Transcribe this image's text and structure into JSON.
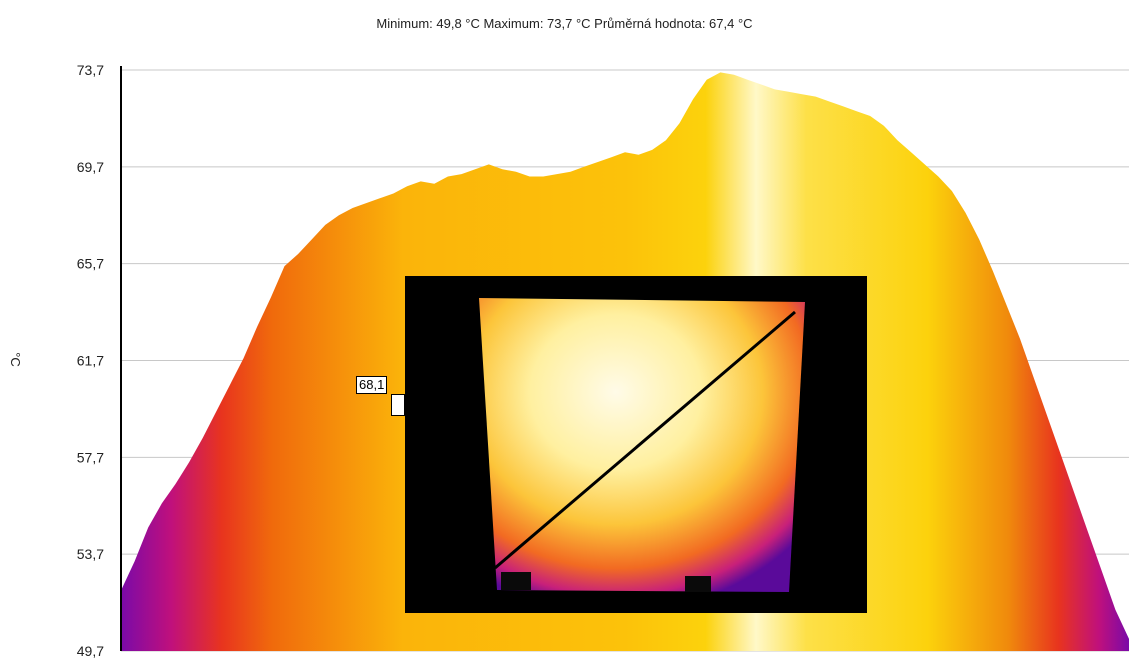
{
  "stats": {
    "text": "Minimum:  49,8  °C Maximum:  73,7  °C Průměrná hodnota: 67,4  °C"
  },
  "marker": {
    "label": "68,1"
  },
  "colors": {
    "line": "#000000",
    "gridline": "#c8c8c8",
    "palette": [
      "#7a0aa8",
      "#c0107c",
      "#e8341e",
      "#f06a0c",
      "#fbb40a",
      "#fcd20c",
      "#fff8c8"
    ]
  },
  "chart_data": {
    "type": "area",
    "ylabel": "°C",
    "ylim": [
      49.7,
      73.7
    ],
    "yticks": [
      "49,7",
      "53,7",
      "57,7",
      "61,7",
      "65,7",
      "69,7",
      "73,7"
    ],
    "ytick_values": [
      49.7,
      53.7,
      57.7,
      61.7,
      65.7,
      69.7,
      73.7
    ],
    "grid": true,
    "profile": [
      52.2,
      53.4,
      54.8,
      55.8,
      56.6,
      57.5,
      58.5,
      59.6,
      60.7,
      61.8,
      63.1,
      64.3,
      65.6,
      66.1,
      66.7,
      67.3,
      67.7,
      68.0,
      68.2,
      68.4,
      68.6,
      68.9,
      69.1,
      69.0,
      69.3,
      69.4,
      69.6,
      69.8,
      69.6,
      69.5,
      69.3,
      69.3,
      69.4,
      69.5,
      69.7,
      69.9,
      70.1,
      70.3,
      70.2,
      70.4,
      70.8,
      71.5,
      72.5,
      73.3,
      73.6,
      73.5,
      73.3,
      73.1,
      72.9,
      72.8,
      72.7,
      72.6,
      72.4,
      72.2,
      72.0,
      71.8,
      71.4,
      70.8,
      70.3,
      69.8,
      69.3,
      68.7,
      67.8,
      66.7,
      65.4,
      64.0,
      62.6,
      61.0,
      59.4,
      57.8,
      56.2,
      54.6,
      53.0,
      51.4,
      50.2
    ]
  }
}
